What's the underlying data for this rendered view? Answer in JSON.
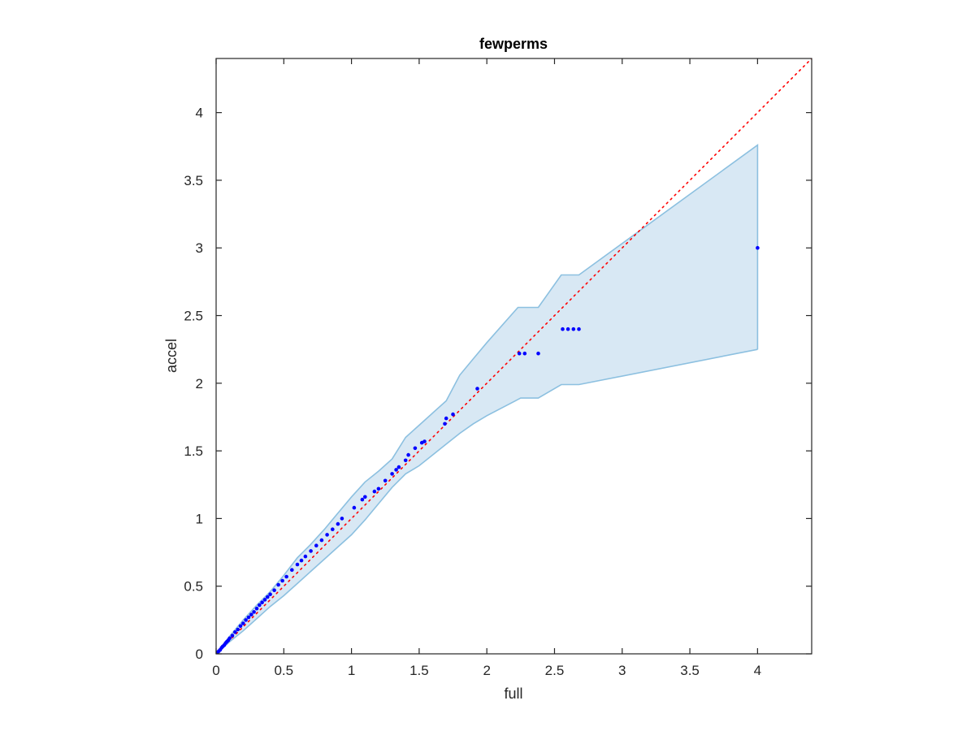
{
  "chart_data": {
    "type": "scatter",
    "title": "fewperms",
    "xlabel": "full",
    "ylabel": "accel",
    "xlim": [
      0,
      4.4
    ],
    "ylim": [
      0,
      4.4
    ],
    "xticks": [
      0,
      0.5,
      1,
      1.5,
      2,
      2.5,
      3,
      3.5,
      4
    ],
    "yticks": [
      0,
      0.5,
      1,
      1.5,
      2,
      2.5,
      3,
      3.5,
      4
    ],
    "xtick_labels": [
      "0",
      "0.5",
      "1",
      "1.5",
      "2",
      "2.5",
      "3",
      "3.5",
      "4"
    ],
    "ytick_labels": [
      "0",
      "0.5",
      "1",
      "1.5",
      "2",
      "2.5",
      "3",
      "3.5",
      "4"
    ],
    "grid": false,
    "colors": {
      "points": "#0000ff",
      "reference_line": "#ff0000",
      "band_fill": "#d8e8f4",
      "band_edge": "#8cc0e0",
      "axes": "#262626"
    },
    "reference_line": {
      "x": [
        0,
        4.4
      ],
      "y": [
        0,
        4.4
      ],
      "style": "dotted"
    },
    "band": {
      "upper": [
        [
          0,
          0
        ],
        [
          0.1,
          0.13
        ],
        [
          0.2,
          0.25
        ],
        [
          0.3,
          0.36
        ],
        [
          0.4,
          0.46
        ],
        [
          0.5,
          0.58
        ],
        [
          0.6,
          0.71
        ],
        [
          0.7,
          0.81
        ],
        [
          0.8,
          0.92
        ],
        [
          0.9,
          1.04
        ],
        [
          1.0,
          1.16
        ],
        [
          1.1,
          1.27
        ],
        [
          1.2,
          1.35
        ],
        [
          1.3,
          1.44
        ],
        [
          1.4,
          1.6
        ],
        [
          1.5,
          1.69
        ],
        [
          1.6,
          1.78
        ],
        [
          1.7,
          1.87
        ],
        [
          1.8,
          2.06
        ],
        [
          1.9,
          2.18
        ],
        [
          2.0,
          2.3
        ],
        [
          2.23,
          2.56
        ],
        [
          2.38,
          2.56
        ],
        [
          2.55,
          2.8
        ],
        [
          2.68,
          2.8
        ],
        [
          4.0,
          3.76
        ]
      ],
      "lower": [
        [
          0,
          0
        ],
        [
          0.1,
          0.09
        ],
        [
          0.2,
          0.17
        ],
        [
          0.3,
          0.26
        ],
        [
          0.4,
          0.35
        ],
        [
          0.5,
          0.43
        ],
        [
          0.6,
          0.52
        ],
        [
          0.7,
          0.61
        ],
        [
          0.8,
          0.7
        ],
        [
          0.9,
          0.79
        ],
        [
          1.0,
          0.88
        ],
        [
          1.1,
          0.99
        ],
        [
          1.2,
          1.11
        ],
        [
          1.3,
          1.23
        ],
        [
          1.4,
          1.33
        ],
        [
          1.5,
          1.39
        ],
        [
          1.6,
          1.47
        ],
        [
          1.7,
          1.55
        ],
        [
          1.8,
          1.63
        ],
        [
          1.9,
          1.7
        ],
        [
          2.0,
          1.76
        ],
        [
          2.25,
          1.89
        ],
        [
          2.38,
          1.89
        ],
        [
          2.55,
          1.99
        ],
        [
          2.68,
          1.99
        ],
        [
          4.0,
          2.25
        ]
      ]
    },
    "series": [
      {
        "x": [
          0.01,
          0.02,
          0.03,
          0.04,
          0.05,
          0.06,
          0.07,
          0.08,
          0.09,
          0.1,
          0.12,
          0.14,
          0.16,
          0.18,
          0.2,
          0.22,
          0.24,
          0.26,
          0.28,
          0.3,
          0.32,
          0.34,
          0.36,
          0.38,
          0.4,
          0.43,
          0.46,
          0.49,
          0.52,
          0.56,
          0.6,
          0.63,
          0.66,
          0.7,
          0.74,
          0.78,
          0.82,
          0.86,
          0.9,
          0.93,
          1.02,
          1.08,
          1.1,
          1.17,
          1.2,
          1.25,
          1.3,
          1.33,
          1.35,
          1.4,
          1.42,
          1.47,
          1.52,
          1.54,
          1.69,
          1.7,
          1.75,
          1.93,
          2.24,
          2.28,
          2.38,
          2.56,
          2.6,
          2.64,
          2.68,
          4.0
        ],
        "y": [
          0.01,
          0.02,
          0.03,
          0.045,
          0.055,
          0.065,
          0.08,
          0.09,
          0.1,
          0.115,
          0.135,
          0.16,
          0.18,
          0.205,
          0.225,
          0.25,
          0.27,
          0.29,
          0.31,
          0.335,
          0.36,
          0.38,
          0.4,
          0.42,
          0.44,
          0.47,
          0.51,
          0.54,
          0.57,
          0.62,
          0.66,
          0.69,
          0.72,
          0.76,
          0.8,
          0.84,
          0.88,
          0.92,
          0.96,
          1.0,
          1.08,
          1.14,
          1.16,
          1.2,
          1.22,
          1.28,
          1.33,
          1.36,
          1.38,
          1.43,
          1.47,
          1.52,
          1.56,
          1.57,
          1.7,
          1.74,
          1.77,
          1.96,
          2.22,
          2.22,
          2.22,
          2.4,
          2.4,
          2.4,
          2.4,
          3.0
        ]
      }
    ]
  }
}
